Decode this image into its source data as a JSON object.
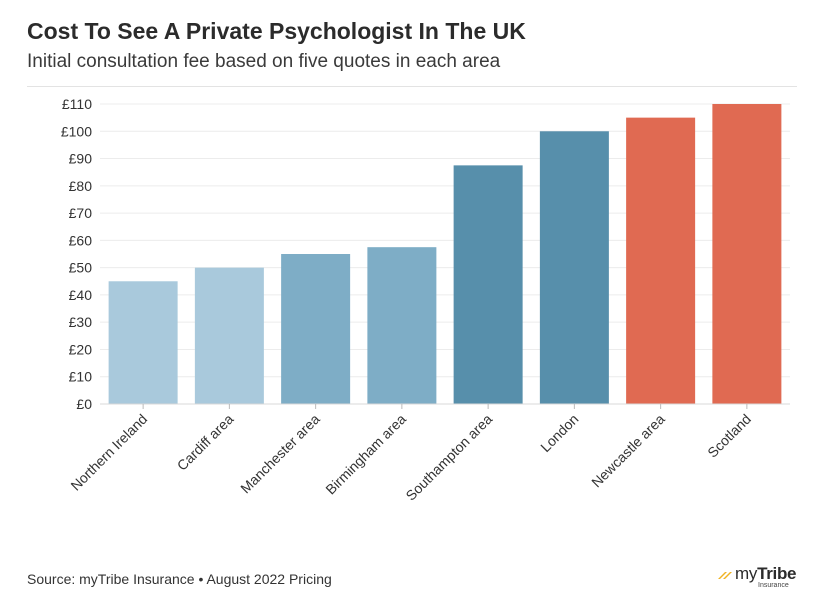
{
  "title": "Cost To See A Private Psychologist In The UK",
  "subtitle": "Initial consultation fee based on five quotes in each area",
  "source": "Source: myTribe Insurance • August 2022 Pricing",
  "brand": {
    "name_light": "my",
    "name_bold": "Tribe",
    "sub": "Insurance",
    "accent_color": "#f0b323"
  },
  "chart_data": {
    "type": "bar",
    "categories": [
      "Northern Ireland",
      "Cardiff area",
      "Manchester area",
      "Birmingham area",
      "Southampton area",
      "London",
      "Newcastle area",
      "Scotland"
    ],
    "values": [
      45,
      50,
      55,
      57.5,
      87.5,
      100,
      105,
      110
    ],
    "colors": [
      "#a9c9dc",
      "#a9c9dc",
      "#7eadc6",
      "#7eadc6",
      "#578fab",
      "#578fab",
      "#e06a52",
      "#e06a52"
    ],
    "yticks": [
      0,
      10,
      20,
      30,
      40,
      50,
      60,
      70,
      80,
      90,
      100,
      110
    ],
    "ytick_labels": [
      "£0",
      "£10",
      "£20",
      "£30",
      "£40",
      "£50",
      "£60",
      "£70",
      "£80",
      "£90",
      "£100",
      "£110"
    ],
    "ylim": [
      0,
      110
    ],
    "xlabel": "",
    "ylabel": "",
    "grid": true
  }
}
